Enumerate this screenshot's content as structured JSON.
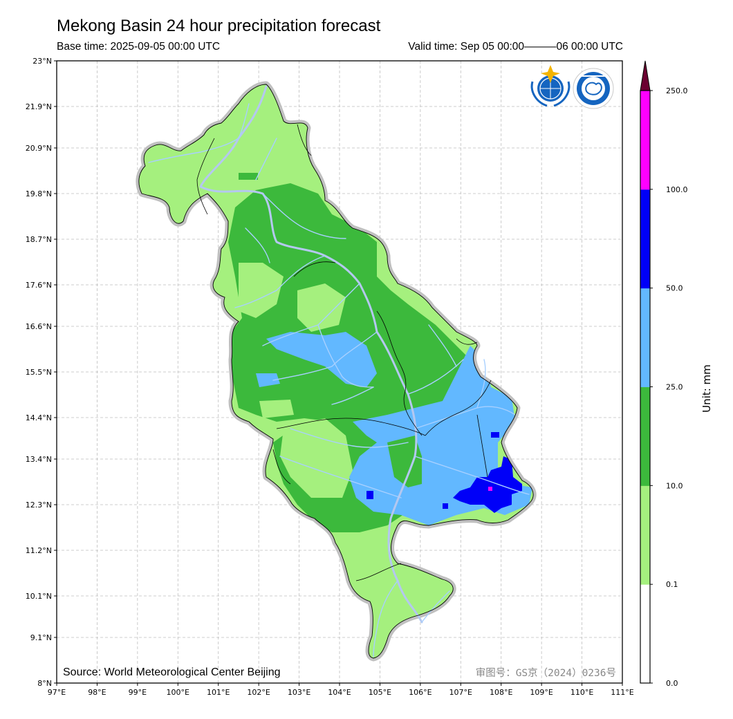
{
  "title": "Mekong Basin 24 hour precipitation forecast",
  "base_time": "Base time: 2025-09-05 00:00 UTC",
  "valid_time": "Valid time: Sep 05 00:00———06 00:00 UTC",
  "source": "Source: World Meteorological Center Beijing",
  "approval_no": "审图号：GS京（2024）0236号",
  "map": {
    "lon_range": [
      97,
      111
    ],
    "lat_range": [
      8,
      23
    ],
    "x_ticks": [
      "97°E",
      "98°E",
      "99°E",
      "100°E",
      "101°E",
      "102°E",
      "103°E",
      "104°E",
      "105°E",
      "106°E",
      "107°E",
      "108°E",
      "109°E",
      "110°E",
      "111°E"
    ],
    "y_ticks": [
      "23°N",
      "21.9°N",
      "20.9°N",
      "19.8°N",
      "18.7°N",
      "17.6°N",
      "16.6°N",
      "15.5°N",
      "14.4°N",
      "13.4°N",
      "12.3°N",
      "11.2°N",
      "10.1°N",
      "9.1°N",
      "8°N"
    ],
    "grid": true,
    "logos": [
      "wmo-logo",
      "cma-logo"
    ]
  },
  "colorbar": {
    "label": "Unit: mm",
    "ticks": [
      "0.0",
      "0.1",
      "10.0",
      "25.0",
      "50.0",
      "100.0",
      "250.0"
    ],
    "colors": [
      "#ffffff",
      "#a5f07e",
      "#3cb93c",
      "#62b8ff",
      "#0000f8",
      "#ff00ff"
    ],
    "extend_color": "#6b0031"
  },
  "colors": {
    "light_green": "#a5f07e",
    "green": "#3cb93c",
    "light_blue": "#62b8ff",
    "blue": "#0000f8",
    "magenta": "#ff00ff",
    "basin_halo": "#c0c0c0",
    "river": "#a8d0ff"
  }
}
